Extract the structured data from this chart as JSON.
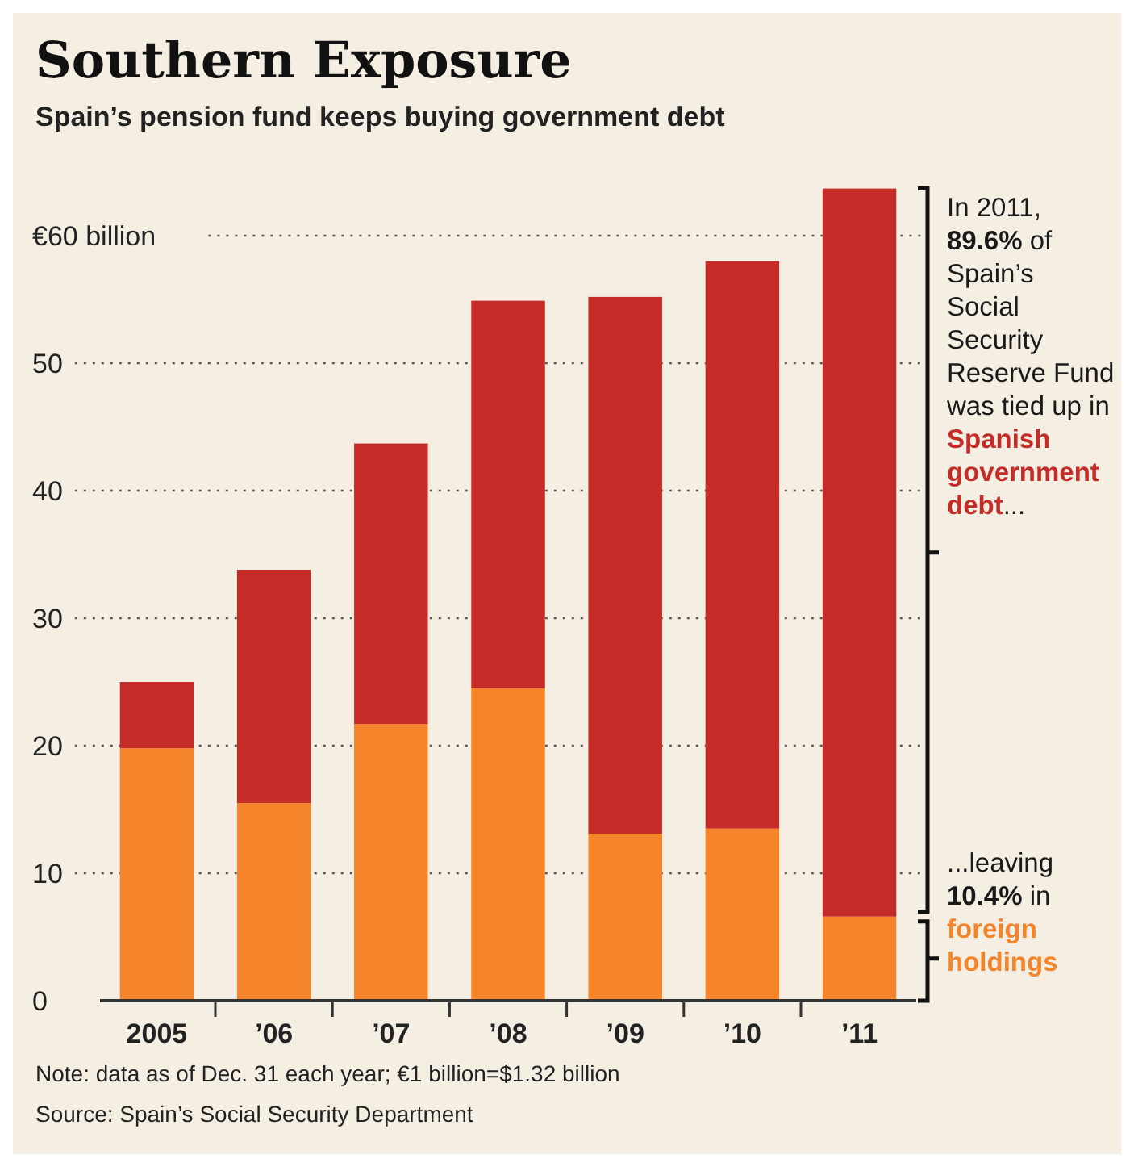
{
  "chart_data": {
    "type": "bar",
    "stacked": true,
    "title": "Southern Exposure",
    "subtitle": "Spain’s pension fund keeps buying government debt",
    "categories": [
      "2005",
      "’06",
      "’07",
      "’08",
      "’09",
      "’10",
      "’11"
    ],
    "series": [
      {
        "color": "#f5842b",
        "values": [
          19.8,
          15.5,
          21.7,
          24.5,
          13.1,
          13.5,
          6.6
        ]
      },
      {
        "color": "#c52b27",
        "values": [
          5.2,
          18.3,
          22.0,
          30.4,
          42.1,
          44.5,
          57.1
        ]
      }
    ],
    "ylim": [
      0,
      63.7
    ],
    "yticks": [
      0,
      10,
      20,
      30,
      40,
      50,
      {
        "value": 60,
        "label": "€60 billion"
      }
    ],
    "grid": "y",
    "annotations": [
      "In 2011,",
      "89.6%",
      "of Spain’s Social Security Reserve Fund was tied up in",
      "Spanish government debt",
      "...",
      "...leaving",
      "10.4%",
      "in",
      "foreign holdings",
      "Note: data as of Dec. 31 each year; €1 billion=$1.32 billion",
      "Source: Spain’s Social Security Department"
    ]
  }
}
